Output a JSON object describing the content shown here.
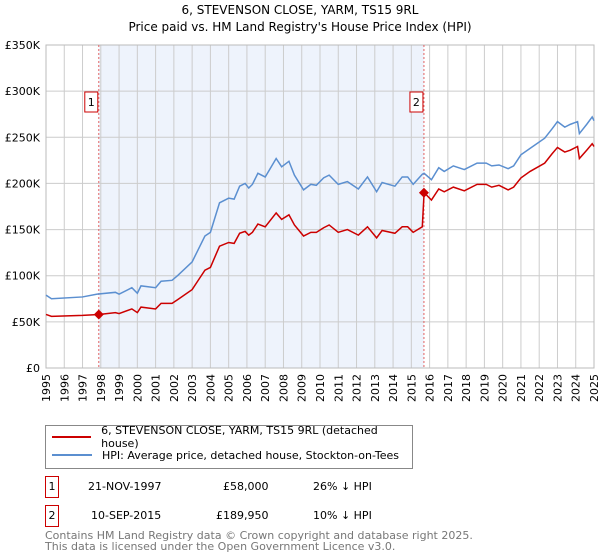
{
  "chart_data": {
    "type": "line",
    "title": "6, STEVENSON CLOSE, YARM, TS15 9RL",
    "subtitle": "Price paid vs. HM Land Registry's House Price Index (HPI)",
    "xlim": [
      1995,
      2025
    ],
    "ylim": [
      0,
      350000
    ],
    "x_ticks": [
      "1995",
      "1996",
      "1997",
      "1998",
      "1999",
      "2000",
      "2001",
      "2002",
      "2003",
      "2004",
      "2005",
      "2006",
      "2007",
      "2008",
      "2009",
      "2010",
      "2011",
      "2012",
      "2013",
      "2014",
      "2015",
      "2016",
      "2017",
      "2018",
      "2019",
      "2020",
      "2021",
      "2022",
      "2023",
      "2024",
      "2025"
    ],
    "y_ticks": [
      {
        "v": 0,
        "label": "£0"
      },
      {
        "v": 50000,
        "label": "£50K"
      },
      {
        "v": 100000,
        "label": "£100K"
      },
      {
        "v": 150000,
        "label": "£150K"
      },
      {
        "v": 200000,
        "label": "£200K"
      },
      {
        "v": 250000,
        "label": "£250K"
      },
      {
        "v": 300000,
        "label": "£300K"
      },
      {
        "v": 350000,
        "label": "£350K"
      }
    ],
    "grid": true,
    "series": [
      {
        "name": "6, STEVENSON CLOSE, YARM, TS15 9RL (detached house)",
        "color": "#cc0000",
        "points": [
          [
            1995.0,
            58
          ],
          [
            1995.3,
            56
          ],
          [
            1997.0,
            57
          ],
          [
            1997.9,
            58
          ],
          [
            1998.8,
            60
          ],
          [
            1999.0,
            59
          ],
          [
            1999.7,
            64
          ],
          [
            2000.0,
            60
          ],
          [
            2000.2,
            66
          ],
          [
            2001.0,
            64
          ],
          [
            2001.3,
            70
          ],
          [
            2001.9,
            70
          ],
          [
            2002.2,
            74
          ],
          [
            2003.0,
            85
          ],
          [
            2003.3,
            94
          ],
          [
            2003.7,
            106
          ],
          [
            2004.0,
            109
          ],
          [
            2004.5,
            132
          ],
          [
            2005.0,
            136
          ],
          [
            2005.3,
            135
          ],
          [
            2005.6,
            146
          ],
          [
            2005.9,
            148
          ],
          [
            2006.1,
            144
          ],
          [
            2006.3,
            147
          ],
          [
            2006.6,
            156
          ],
          [
            2007.0,
            153
          ],
          [
            2007.6,
            168
          ],
          [
            2007.9,
            161
          ],
          [
            2008.3,
            166
          ],
          [
            2008.6,
            155
          ],
          [
            2009.1,
            143
          ],
          [
            2009.5,
            147
          ],
          [
            2009.8,
            147
          ],
          [
            2010.2,
            152
          ],
          [
            2010.5,
            155
          ],
          [
            2011.0,
            147
          ],
          [
            2011.5,
            150
          ],
          [
            2012.1,
            144
          ],
          [
            2012.6,
            153
          ],
          [
            2013.1,
            141
          ],
          [
            2013.4,
            149
          ],
          [
            2014.1,
            146
          ],
          [
            2014.5,
            153
          ],
          [
            2014.8,
            153
          ],
          [
            2015.1,
            147
          ],
          [
            2015.6,
            153
          ],
          [
            2015.7,
            190
          ],
          [
            2016.1,
            182
          ],
          [
            2016.5,
            194
          ],
          [
            2016.8,
            191
          ],
          [
            2017.3,
            196
          ],
          [
            2017.9,
            192
          ],
          [
            2018.6,
            199
          ],
          [
            2019.1,
            199
          ],
          [
            2019.4,
            196
          ],
          [
            2019.8,
            198
          ],
          [
            2020.3,
            193
          ],
          [
            2020.6,
            196
          ],
          [
            2021.0,
            206
          ],
          [
            2021.5,
            213
          ],
          [
            2022.3,
            222
          ],
          [
            2022.7,
            232
          ],
          [
            2023.0,
            239
          ],
          [
            2023.4,
            234
          ],
          [
            2023.7,
            236
          ],
          [
            2024.1,
            240
          ],
          [
            2024.2,
            227
          ],
          [
            2024.6,
            236
          ],
          [
            2024.9,
            243
          ],
          [
            2025.0,
            240
          ]
        ]
      },
      {
        "name": "HPI: Average price, detached house, Stockton-on-Tees",
        "color": "#5b8fd0",
        "points": [
          [
            1995.0,
            79
          ],
          [
            1995.3,
            75
          ],
          [
            1997.0,
            77
          ],
          [
            1997.8,
            80
          ],
          [
            1998.8,
            82
          ],
          [
            1999.0,
            80
          ],
          [
            1999.7,
            87
          ],
          [
            2000.0,
            81
          ],
          [
            2000.2,
            89
          ],
          [
            2001.0,
            87
          ],
          [
            2001.3,
            94
          ],
          [
            2001.9,
            95
          ],
          [
            2002.2,
            100
          ],
          [
            2003.0,
            115
          ],
          [
            2003.3,
            127
          ],
          [
            2003.7,
            143
          ],
          [
            2004.0,
            147
          ],
          [
            2004.5,
            179
          ],
          [
            2005.0,
            184
          ],
          [
            2005.3,
            183
          ],
          [
            2005.6,
            197
          ],
          [
            2005.9,
            200
          ],
          [
            2006.1,
            195
          ],
          [
            2006.3,
            199
          ],
          [
            2006.6,
            211
          ],
          [
            2007.0,
            207
          ],
          [
            2007.6,
            227
          ],
          [
            2007.9,
            218
          ],
          [
            2008.3,
            224
          ],
          [
            2008.6,
            209
          ],
          [
            2009.1,
            193
          ],
          [
            2009.5,
            199
          ],
          [
            2009.8,
            198
          ],
          [
            2010.2,
            206
          ],
          [
            2010.5,
            209
          ],
          [
            2011.0,
            199
          ],
          [
            2011.5,
            202
          ],
          [
            2012.1,
            194
          ],
          [
            2012.6,
            207
          ],
          [
            2013.1,
            191
          ],
          [
            2013.4,
            201
          ],
          [
            2014.1,
            197
          ],
          [
            2014.5,
            207
          ],
          [
            2014.8,
            207
          ],
          [
            2015.1,
            199
          ],
          [
            2015.6,
            210
          ],
          [
            2015.7,
            211
          ],
          [
            2016.1,
            204
          ],
          [
            2016.5,
            217
          ],
          [
            2016.8,
            213
          ],
          [
            2017.3,
            219
          ],
          [
            2017.9,
            215
          ],
          [
            2018.6,
            222
          ],
          [
            2019.1,
            222
          ],
          [
            2019.4,
            219
          ],
          [
            2019.8,
            220
          ],
          [
            2020.3,
            216
          ],
          [
            2020.6,
            219
          ],
          [
            2021.0,
            231
          ],
          [
            2021.5,
            238
          ],
          [
            2022.3,
            249
          ],
          [
            2022.7,
            259
          ],
          [
            2023.0,
            267
          ],
          [
            2023.4,
            261
          ],
          [
            2023.7,
            264
          ],
          [
            2024.1,
            267
          ],
          [
            2024.2,
            254
          ],
          [
            2024.6,
            264
          ],
          [
            2024.9,
            272
          ],
          [
            2025.0,
            268
          ]
        ]
      }
    ],
    "value_unit": "thousands GBP",
    "sales": [
      {
        "label": "1",
        "x": 1997.89,
        "y": 58000,
        "date": "21-NOV-1997",
        "price": "£58,000",
        "hpi": "26% ↓ HPI"
      },
      {
        "label": "2",
        "x": 2015.69,
        "y": 189950,
        "date": "10-SEP-2015",
        "price": "£189,950",
        "hpi": "10% ↓ HPI"
      }
    ],
    "legend_position": "below"
  },
  "footer": {
    "line1": "Contains HM Land Registry data © Crown copyright and database right 2025.",
    "line2": "This data is licensed under the Open Government Licence v3.0."
  }
}
